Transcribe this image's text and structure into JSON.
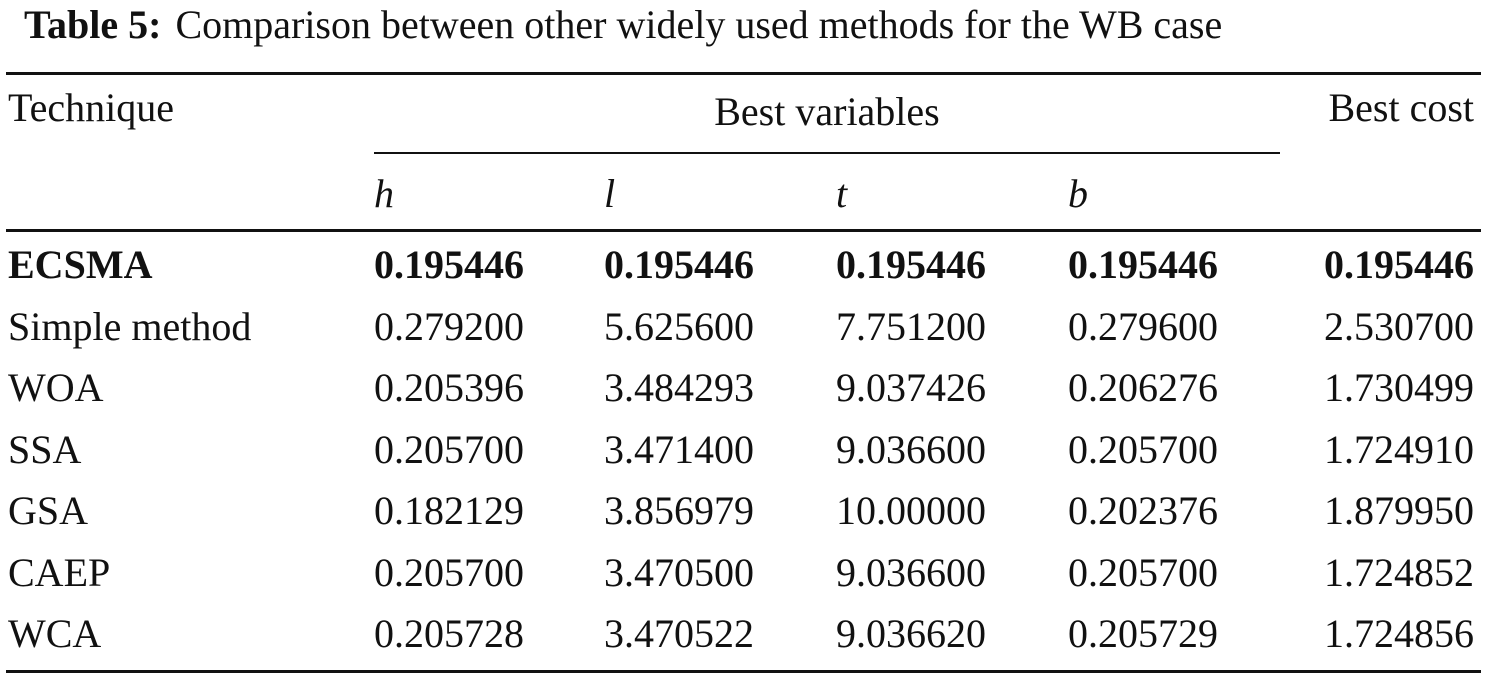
{
  "table": {
    "caption_label": "Table 5:",
    "caption_text": "Comparison between other widely used methods for the WB case",
    "header": {
      "technique": "Technique",
      "best_variables": "Best variables",
      "best_cost": "Best cost",
      "variables": [
        "h",
        "l",
        "t",
        "b"
      ]
    },
    "rows": [
      {
        "technique": "ECSMA",
        "h": "0.195446",
        "l": "0.195446",
        "t": "0.195446",
        "b": "0.195446",
        "cost": "0.195446",
        "bold": true
      },
      {
        "technique": "Simple method",
        "h": "0.279200",
        "l": "5.625600",
        "t": "7.751200",
        "b": "0.279600",
        "cost": "2.530700",
        "bold": false
      },
      {
        "technique": "WOA",
        "h": "0.205396",
        "l": "3.484293",
        "t": "9.037426",
        "b": "0.206276",
        "cost": "1.730499",
        "bold": false
      },
      {
        "technique": "SSA",
        "h": "0.205700",
        "l": "3.471400",
        "t": "9.036600",
        "b": "0.205700",
        "cost": "1.724910",
        "bold": false
      },
      {
        "technique": "GSA",
        "h": "0.182129",
        "l": "3.856979",
        "t": "10.00000",
        "b": "0.202376",
        "cost": "1.879950",
        "bold": false
      },
      {
        "technique": "CAEP",
        "h": "0.205700",
        "l": "3.470500",
        "t": "9.036600",
        "b": "0.205700",
        "cost": "1.724852",
        "bold": false
      },
      {
        "technique": "WCA",
        "h": "0.205728",
        "l": "3.470522",
        "t": "9.036620",
        "b": "0.205729",
        "cost": "1.724856",
        "bold": false
      }
    ]
  }
}
